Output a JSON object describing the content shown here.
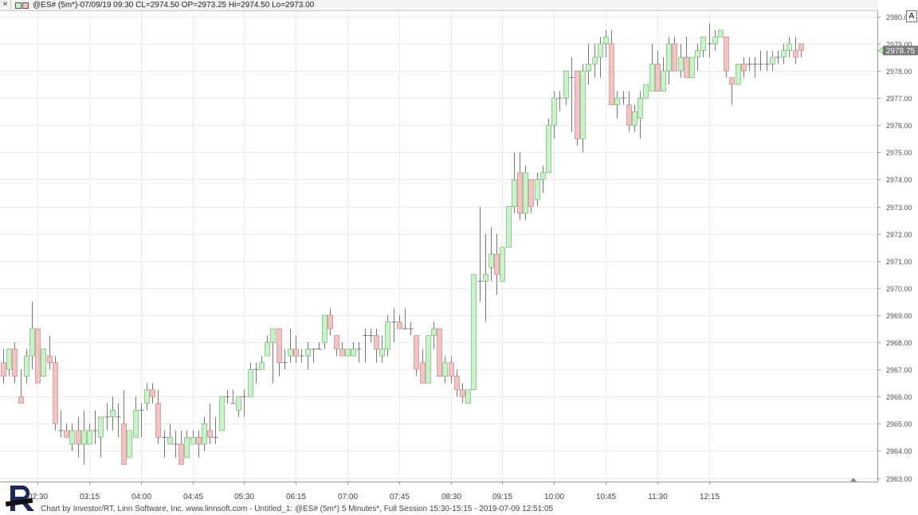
{
  "header": {
    "close_glyph": "×",
    "title": "@ES# (5m*)-07/09/19 09:30 CL=2974.50 OP=2973.25 Hi=2974.50 Lo=2973.00",
    "autoscale_label": "A"
  },
  "footer": {
    "text": "Chart by Investor/RT, Linn Software, Inc. www.linnsoft.com - Untitled_1: @ES# (5m*) 5 Minutes*, Full Session 15:30-15:15 - 2019-07-09 12:51:05"
  },
  "colors": {
    "up_fill": "#c8f2c8",
    "down_fill": "#f3c3c3",
    "up_stroke": "#5fae5f",
    "down_stroke": "#c07878",
    "wick": "#777777",
    "grid": "#ebebeb",
    "last_price_bg": "#7a7a7a"
  },
  "chart_data": {
    "type": "candlestick",
    "symbol": "@ES#",
    "interval": "5 Minutes",
    "y_ticks": [
      "2963.00",
      "2964.00",
      "2965.00",
      "2966.00",
      "2967.00",
      "2968.00",
      "2969.00",
      "2970.00",
      "2971.00",
      "2972.00",
      "2973.00",
      "2974.00",
      "2975.00",
      "2976.00",
      "2977.00",
      "2978.00",
      "2979.00",
      "2980.00"
    ],
    "ylim": [
      2962.9,
      2980.2
    ],
    "x_ticks": [
      "02:30",
      "03:15",
      "04:00",
      "04:45",
      "05:30",
      "06:15",
      "07:00",
      "07:45",
      "08:30",
      "09:15",
      "10:00",
      "10:45",
      "11:30",
      "12:15"
    ],
    "first_bar_time": "02:00",
    "last_price": "2978.75",
    "grid": true,
    "candles": [
      [
        2967.25,
        2967.75,
        2966.5,
        2966.75
      ],
      [
        2967.0,
        2967.75,
        2966.75,
        2967.75
      ],
      [
        2967.75,
        2968.0,
        2966.5,
        2966.75
      ],
      [
        2966.0,
        2967.0,
        2965.75,
        2965.75
      ],
      [
        2966.75,
        2967.75,
        2966.5,
        2967.5
      ],
      [
        2967.5,
        2969.5,
        2967.0,
        2968.5
      ],
      [
        2968.5,
        2968.5,
        2966.5,
        2966.5
      ],
      [
        2966.75,
        2967.75,
        2966.75,
        2967.75
      ],
      [
        2967.5,
        2968.25,
        2967.0,
        2967.25
      ],
      [
        2967.25,
        2967.5,
        2964.75,
        2965.0
      ],
      [
        2964.75,
        2965.5,
        2964.5,
        2964.75
      ],
      [
        2964.75,
        2965.0,
        2964.5,
        2964.5
      ],
      [
        2964.25,
        2965.0,
        2964.0,
        2964.75
      ],
      [
        2964.75,
        2965.25,
        2963.75,
        2964.25
      ],
      [
        2964.25,
        2965.5,
        2963.5,
        2964.75
      ],
      [
        2964.25,
        2965.0,
        2964.25,
        2964.75
      ],
      [
        2964.75,
        2965.5,
        2964.25,
        2964.75
      ],
      [
        2964.5,
        2965.25,
        2963.75,
        2965.25
      ],
      [
        2965.25,
        2965.75,
        2964.75,
        2965.25
      ],
      [
        2965.25,
        2966.0,
        2964.75,
        2965.5
      ],
      [
        2965.25,
        2965.75,
        2964.5,
        2965.25
      ],
      [
        2965.0,
        2966.25,
        2963.5,
        2963.5
      ],
      [
        2963.75,
        2964.75,
        2963.75,
        2964.75
      ],
      [
        2964.5,
        2966.0,
        2964.5,
        2965.5
      ],
      [
        2965.5,
        2965.75,
        2964.5,
        2965.5
      ],
      [
        2965.75,
        2966.5,
        2965.5,
        2966.25
      ],
      [
        2966.25,
        2966.5,
        2965.75,
        2966.0
      ],
      [
        2965.75,
        2966.25,
        2964.25,
        2964.5
      ],
      [
        2964.5,
        2964.75,
        2963.75,
        2964.5
      ],
      [
        2964.25,
        2965.0,
        2964.25,
        2964.5
      ],
      [
        2964.25,
        2964.75,
        2963.75,
        2964.25
      ],
      [
        2964.25,
        2964.75,
        2963.5,
        2963.5
      ],
      [
        2963.75,
        2964.75,
        2963.75,
        2964.5
      ],
      [
        2964.25,
        2964.75,
        2964.25,
        2964.5
      ],
      [
        2964.5,
        2964.75,
        2963.75,
        2964.25
      ],
      [
        2964.25,
        2965.25,
        2964.0,
        2965.0
      ],
      [
        2964.75,
        2965.75,
        2964.25,
        2964.5
      ],
      [
        2964.5,
        2965.25,
        2964.25,
        2964.5
      ],
      [
        2964.75,
        2966.0,
        2964.75,
        2966.0
      ],
      [
        2966.0,
        2966.25,
        2965.75,
        2966.0
      ],
      [
        2965.75,
        2966.25,
        2965.75,
        2965.75
      ],
      [
        2965.5,
        2966.0,
        2965.25,
        2966.0
      ],
      [
        2966.0,
        2966.25,
        2965.25,
        2966.0
      ],
      [
        2966.0,
        2967.25,
        2966.0,
        2967.0
      ],
      [
        2967.0,
        2967.25,
        2966.5,
        2967.0
      ],
      [
        2967.0,
        2967.5,
        2967.0,
        2967.25
      ],
      [
        2967.5,
        2968.25,
        2967.5,
        2968.0
      ],
      [
        2968.0,
        2968.5,
        2966.5,
        2968.5
      ],
      [
        2968.5,
        2968.5,
        2966.75,
        2967.25
      ],
      [
        2967.25,
        2967.75,
        2967.0,
        2967.25
      ],
      [
        2967.5,
        2968.5,
        2967.25,
        2967.75
      ],
      [
        2967.75,
        2968.25,
        2967.25,
        2967.5
      ],
      [
        2967.5,
        2967.75,
        2967.25,
        2967.5
      ],
      [
        2967.5,
        2968.0,
        2967.0,
        2967.75
      ],
      [
        2967.75,
        2967.75,
        2967.25,
        2967.75
      ],
      [
        2967.75,
        2968.0,
        2967.75,
        2967.75
      ],
      [
        2968.0,
        2969.0,
        2967.75,
        2969.0
      ],
      [
        2969.0,
        2969.25,
        2968.25,
        2968.5
      ],
      [
        2968.25,
        2968.25,
        2967.5,
        2967.75
      ],
      [
        2967.75,
        2968.0,
        2967.5,
        2967.5
      ],
      [
        2967.5,
        2967.75,
        2967.5,
        2967.75
      ],
      [
        2967.5,
        2968.0,
        2967.5,
        2967.75
      ],
      [
        2967.75,
        2968.0,
        2967.25,
        2967.75
      ],
      [
        2968.25,
        2968.5,
        2967.25,
        2968.25
      ],
      [
        2968.25,
        2968.5,
        2968.0,
        2968.25
      ],
      [
        2968.25,
        2968.5,
        2967.25,
        2967.75
      ],
      [
        2967.5,
        2968.25,
        2967.25,
        2967.75
      ],
      [
        2967.75,
        2969.0,
        2967.5,
        2968.75
      ],
      [
        2968.75,
        2969.25,
        2968.0,
        2968.75
      ],
      [
        2968.75,
        2969.0,
        2968.5,
        2968.5
      ],
      [
        2968.5,
        2969.25,
        2968.5,
        2968.5
      ],
      [
        2968.5,
        2968.75,
        2968.25,
        2968.5
      ],
      [
        2968.25,
        2968.25,
        2966.75,
        2967.0
      ],
      [
        2967.25,
        2967.75,
        2966.5,
        2966.5
      ],
      [
        2966.5,
        2968.25,
        2966.5,
        2968.25
      ],
      [
        2968.25,
        2968.75,
        2967.75,
        2968.5
      ],
      [
        2968.5,
        2968.5,
        2966.75,
        2966.75
      ],
      [
        2966.75,
        2967.5,
        2966.5,
        2967.25
      ],
      [
        2967.25,
        2967.5,
        2966.5,
        2966.75
      ],
      [
        2966.75,
        2967.0,
        2966.0,
        2966.25
      ],
      [
        2966.25,
        2966.5,
        2965.75,
        2966.0
      ],
      [
        2965.75,
        2966.25,
        2965.75,
        2966.25
      ],
      [
        2966.25,
        2970.5,
        2966.25,
        2970.5
      ],
      [
        2970.25,
        2973.0,
        2969.5,
        2970.25
      ],
      [
        2970.25,
        2972.0,
        2968.75,
        2970.5
      ],
      [
        2970.75,
        2972.25,
        2970.25,
        2971.25
      ],
      [
        2971.25,
        2972.0,
        2969.75,
        2970.5
      ],
      [
        2970.25,
        2971.5,
        2970.25,
        2971.5
      ],
      [
        2971.5,
        2973.0,
        2971.5,
        2973.0
      ],
      [
        2973.0,
        2975.0,
        2972.75,
        2974.0
      ],
      [
        2974.25,
        2975.0,
        2972.5,
        2972.75
      ],
      [
        2972.75,
        2974.5,
        2972.5,
        2974.25
      ],
      [
        2974.0,
        2974.0,
        2972.75,
        2973.0
      ],
      [
        2973.25,
        2974.25,
        2973.0,
        2974.0
      ],
      [
        2974.0,
        2974.5,
        2973.5,
        2974.25
      ],
      [
        2974.25,
        2976.25,
        2974.25,
        2976.0
      ],
      [
        2976.0,
        2977.25,
        2975.5,
        2977.0
      ],
      [
        2977.0,
        2977.25,
        2976.5,
        2977.0
      ],
      [
        2977.0,
        2978.0,
        2976.75,
        2978.0
      ],
      [
        2977.75,
        2978.5,
        2975.75,
        2977.75
      ],
      [
        2978.0,
        2978.0,
        2975.25,
        2975.5
      ],
      [
        2975.5,
        2978.25,
        2975.0,
        2978.0
      ],
      [
        2978.0,
        2979.0,
        2977.5,
        2978.25
      ],
      [
        2978.25,
        2979.0,
        2977.75,
        2978.5
      ],
      [
        2978.5,
        2979.25,
        2977.75,
        2979.0
      ],
      [
        2979.0,
        2979.5,
        2978.5,
        2979.25
      ],
      [
        2979.0,
        2979.5,
        2976.75,
        2976.75
      ],
      [
        2976.75,
        2977.25,
        2976.25,
        2977.0
      ],
      [
        2977.0,
        2977.25,
        2976.75,
        2977.0
      ],
      [
        2976.75,
        2977.25,
        2975.75,
        2976.0
      ],
      [
        2976.0,
        2976.75,
        2975.75,
        2976.5
      ],
      [
        2976.25,
        2977.25,
        2975.5,
        2977.0
      ],
      [
        2977.0,
        2977.5,
        2977.0,
        2977.5
      ],
      [
        2977.25,
        2979.0,
        2977.25,
        2978.25
      ],
      [
        2978.25,
        2978.75,
        2977.25,
        2977.25
      ],
      [
        2977.25,
        2978.5,
        2977.25,
        2978.0
      ],
      [
        2978.0,
        2979.25,
        2977.5,
        2979.0
      ],
      [
        2979.0,
        2979.25,
        2978.0,
        2978.0
      ],
      [
        2978.0,
        2979.0,
        2977.75,
        2978.5
      ],
      [
        2978.5,
        2979.25,
        2977.75,
        2977.75
      ],
      [
        2977.75,
        2978.5,
        2977.75,
        2978.5
      ],
      [
        2978.5,
        2979.0,
        2978.0,
        2978.75
      ],
      [
        2978.75,
        2979.25,
        2978.5,
        2979.25
      ],
      [
        2979.0,
        2979.75,
        2978.5,
        2979.0
      ],
      [
        2979.0,
        2979.5,
        2978.75,
        2979.25
      ],
      [
        2979.25,
        2979.5,
        2979.25,
        2979.5
      ],
      [
        2979.25,
        2979.25,
        2977.75,
        2978.0
      ],
      [
        2977.75,
        2977.75,
        2976.75,
        2977.5
      ],
      [
        2977.5,
        2978.25,
        2977.5,
        2978.25
      ],
      [
        2978.25,
        2978.5,
        2977.75,
        2978.0
      ],
      [
        2978.25,
        2978.5,
        2978.0,
        2978.25
      ],
      [
        2978.25,
        2978.5,
        2977.75,
        2978.25
      ],
      [
        2978.25,
        2978.75,
        2978.0,
        2978.25
      ],
      [
        2978.25,
        2978.75,
        2978.0,
        2978.25
      ],
      [
        2978.25,
        2978.75,
        2978.0,
        2978.5
      ],
      [
        2978.5,
        2978.75,
        2978.25,
        2978.5
      ],
      [
        2978.5,
        2979.0,
        2978.25,
        2978.75
      ],
      [
        2978.75,
        2979.25,
        2978.5,
        2979.0
      ],
      [
        2978.75,
        2979.25,
        2978.25,
        2978.5
      ],
      [
        2979.0,
        2979.0,
        2978.5,
        2978.75
      ]
    ]
  }
}
